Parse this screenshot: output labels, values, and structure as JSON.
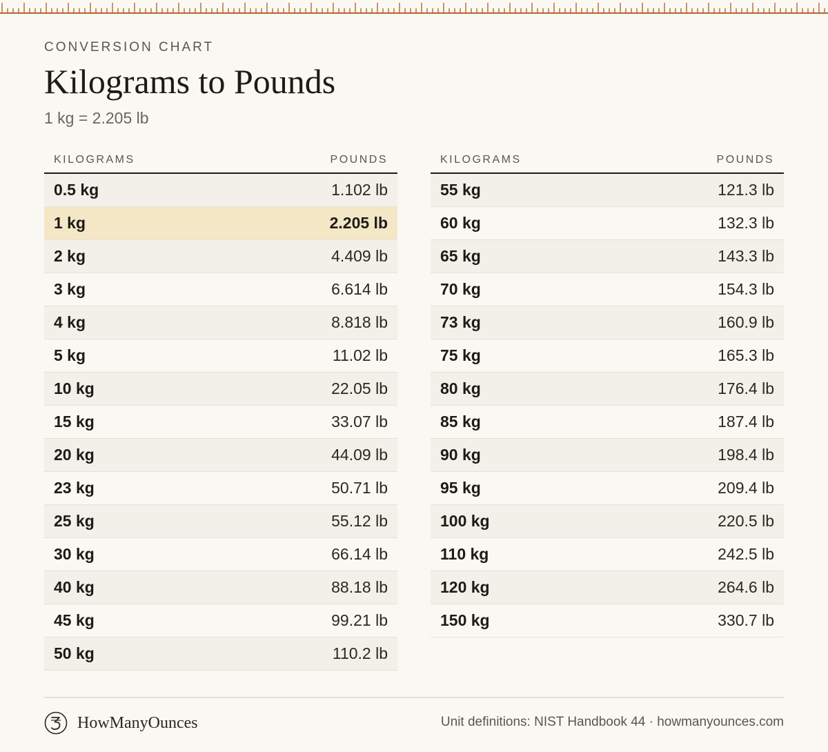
{
  "header": {
    "eyebrow": "CONVERSION CHART",
    "title": "Kilograms to Pounds",
    "subtitle": "1 kg = 2.205 lb"
  },
  "table": {
    "col_kg": "KILOGRAMS",
    "col_lb": "POUNDS",
    "left_rows": [
      {
        "kg": "0.5 kg",
        "lb": "1.102 lb"
      },
      {
        "kg": "1 kg",
        "lb": "2.205 lb"
      },
      {
        "kg": "2 kg",
        "lb": "4.409 lb"
      },
      {
        "kg": "3 kg",
        "lb": "6.614 lb"
      },
      {
        "kg": "4 kg",
        "lb": "8.818 lb"
      },
      {
        "kg": "5 kg",
        "lb": "11.02 lb"
      },
      {
        "kg": "10 kg",
        "lb": "22.05 lb"
      },
      {
        "kg": "15 kg",
        "lb": "33.07 lb"
      },
      {
        "kg": "20 kg",
        "lb": "44.09 lb"
      },
      {
        "kg": "23 kg",
        "lb": "50.71 lb"
      },
      {
        "kg": "25 kg",
        "lb": "55.12 lb"
      },
      {
        "kg": "30 kg",
        "lb": "66.14 lb"
      },
      {
        "kg": "40 kg",
        "lb": "88.18 lb"
      },
      {
        "kg": "45 kg",
        "lb": "99.21 lb"
      },
      {
        "kg": "50 kg",
        "lb": "110.2 lb"
      }
    ],
    "right_rows": [
      {
        "kg": "55 kg",
        "lb": "121.3 lb"
      },
      {
        "kg": "60 kg",
        "lb": "132.3 lb"
      },
      {
        "kg": "65 kg",
        "lb": "143.3 lb"
      },
      {
        "kg": "70 kg",
        "lb": "154.3 lb"
      },
      {
        "kg": "73 kg",
        "lb": "160.9 lb"
      },
      {
        "kg": "75 kg",
        "lb": "165.3 lb"
      },
      {
        "kg": "80 kg",
        "lb": "176.4 lb"
      },
      {
        "kg": "85 kg",
        "lb": "187.4 lb"
      },
      {
        "kg": "90 kg",
        "lb": "198.4 lb"
      },
      {
        "kg": "95 kg",
        "lb": "209.4 lb"
      },
      {
        "kg": "100 kg",
        "lb": "220.5 lb"
      },
      {
        "kg": "110 kg",
        "lb": "242.5 lb"
      },
      {
        "kg": "120 kg",
        "lb": "264.6 lb"
      },
      {
        "kg": "150 kg",
        "lb": "330.7 lb"
      }
    ]
  },
  "footer": {
    "brand": "HowManyOunces",
    "logo_icon": "brand-logo-icon",
    "source": "Unit definitions: NIST Handbook 44 · howmanyounces.com"
  },
  "colors": {
    "accent_ruler": "#b5652e",
    "highlight_row": "#f4e7c6"
  }
}
